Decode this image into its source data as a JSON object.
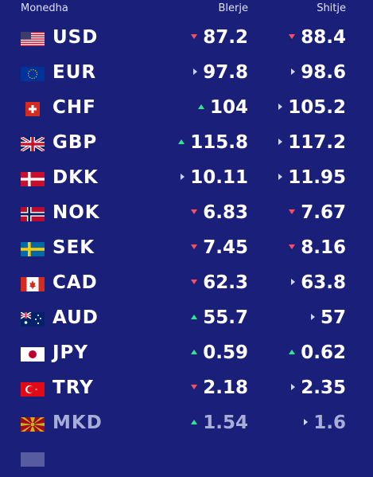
{
  "header": {
    "currency_label": "Monedha",
    "buy_label": "Blerje",
    "sell_label": "Shitje"
  },
  "colors": {
    "background": "#1a1f7a",
    "arrow_down": "#ff4d5e",
    "arrow_up": "#2ee88a",
    "arrow_same": "#cfd3ff"
  },
  "rates": [
    {
      "code": "USD",
      "flag": "us-flag",
      "buy": "87.2",
      "buy_trend": "down",
      "sell": "88.4",
      "sell_trend": "down"
    },
    {
      "code": "EUR",
      "flag": "eu-flag",
      "buy": "97.8",
      "buy_trend": "same",
      "sell": "98.6",
      "sell_trend": "same"
    },
    {
      "code": "CHF",
      "flag": "ch-flag",
      "buy": "104",
      "buy_trend": "up",
      "sell": "105.2",
      "sell_trend": "same"
    },
    {
      "code": "GBP",
      "flag": "gb-flag",
      "buy": "115.8",
      "buy_trend": "up",
      "sell": "117.2",
      "sell_trend": "same"
    },
    {
      "code": "DKK",
      "flag": "dk-flag",
      "buy": "10.11",
      "buy_trend": "same",
      "sell": "11.95",
      "sell_trend": "same"
    },
    {
      "code": "NOK",
      "flag": "no-flag",
      "buy": "6.83",
      "buy_trend": "down",
      "sell": "7.67",
      "sell_trend": "down"
    },
    {
      "code": "SEK",
      "flag": "se-flag",
      "buy": "7.45",
      "buy_trend": "down",
      "sell": "8.16",
      "sell_trend": "down"
    },
    {
      "code": "CAD",
      "flag": "ca-flag",
      "buy": "62.3",
      "buy_trend": "down",
      "sell": "63.8",
      "sell_trend": "same"
    },
    {
      "code": "AUD",
      "flag": "au-flag",
      "buy": "55.7",
      "buy_trend": "up",
      "sell": "57",
      "sell_trend": "same"
    },
    {
      "code": "JPY",
      "flag": "jp-flag",
      "buy": "0.59",
      "buy_trend": "up",
      "sell": "0.62",
      "sell_trend": "up"
    },
    {
      "code": "TRY",
      "flag": "tr-flag",
      "buy": "2.18",
      "buy_trend": "down",
      "sell": "2.35",
      "sell_trend": "same"
    },
    {
      "code": "MKD",
      "flag": "mk-flag",
      "buy": "1.54",
      "buy_trend": "up",
      "sell": "1.6",
      "sell_trend": "same"
    }
  ]
}
